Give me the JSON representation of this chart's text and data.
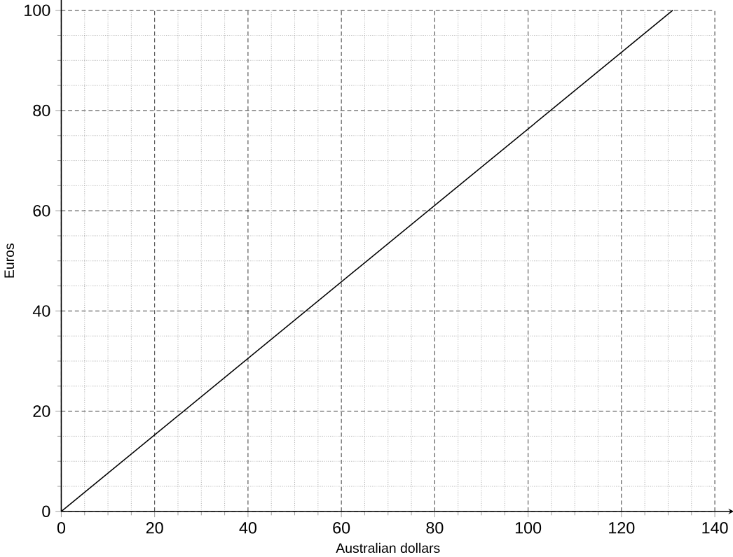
{
  "chart_data": {
    "type": "line",
    "xlabel": "Australian dollars",
    "ylabel": "Euros",
    "x": [
      0,
      131
    ],
    "series": [
      {
        "color": "#000000",
        "values": [
          0,
          100
        ]
      }
    ],
    "xlim": [
      0,
      140
    ],
    "ylim": [
      0,
      100
    ],
    "xticks": [
      0,
      20,
      40,
      60,
      80,
      100,
      120,
      140
    ],
    "yticks": [
      0,
      20,
      40,
      60,
      80,
      100
    ],
    "grid": true,
    "marker": "none",
    "line_style": "solid"
  }
}
